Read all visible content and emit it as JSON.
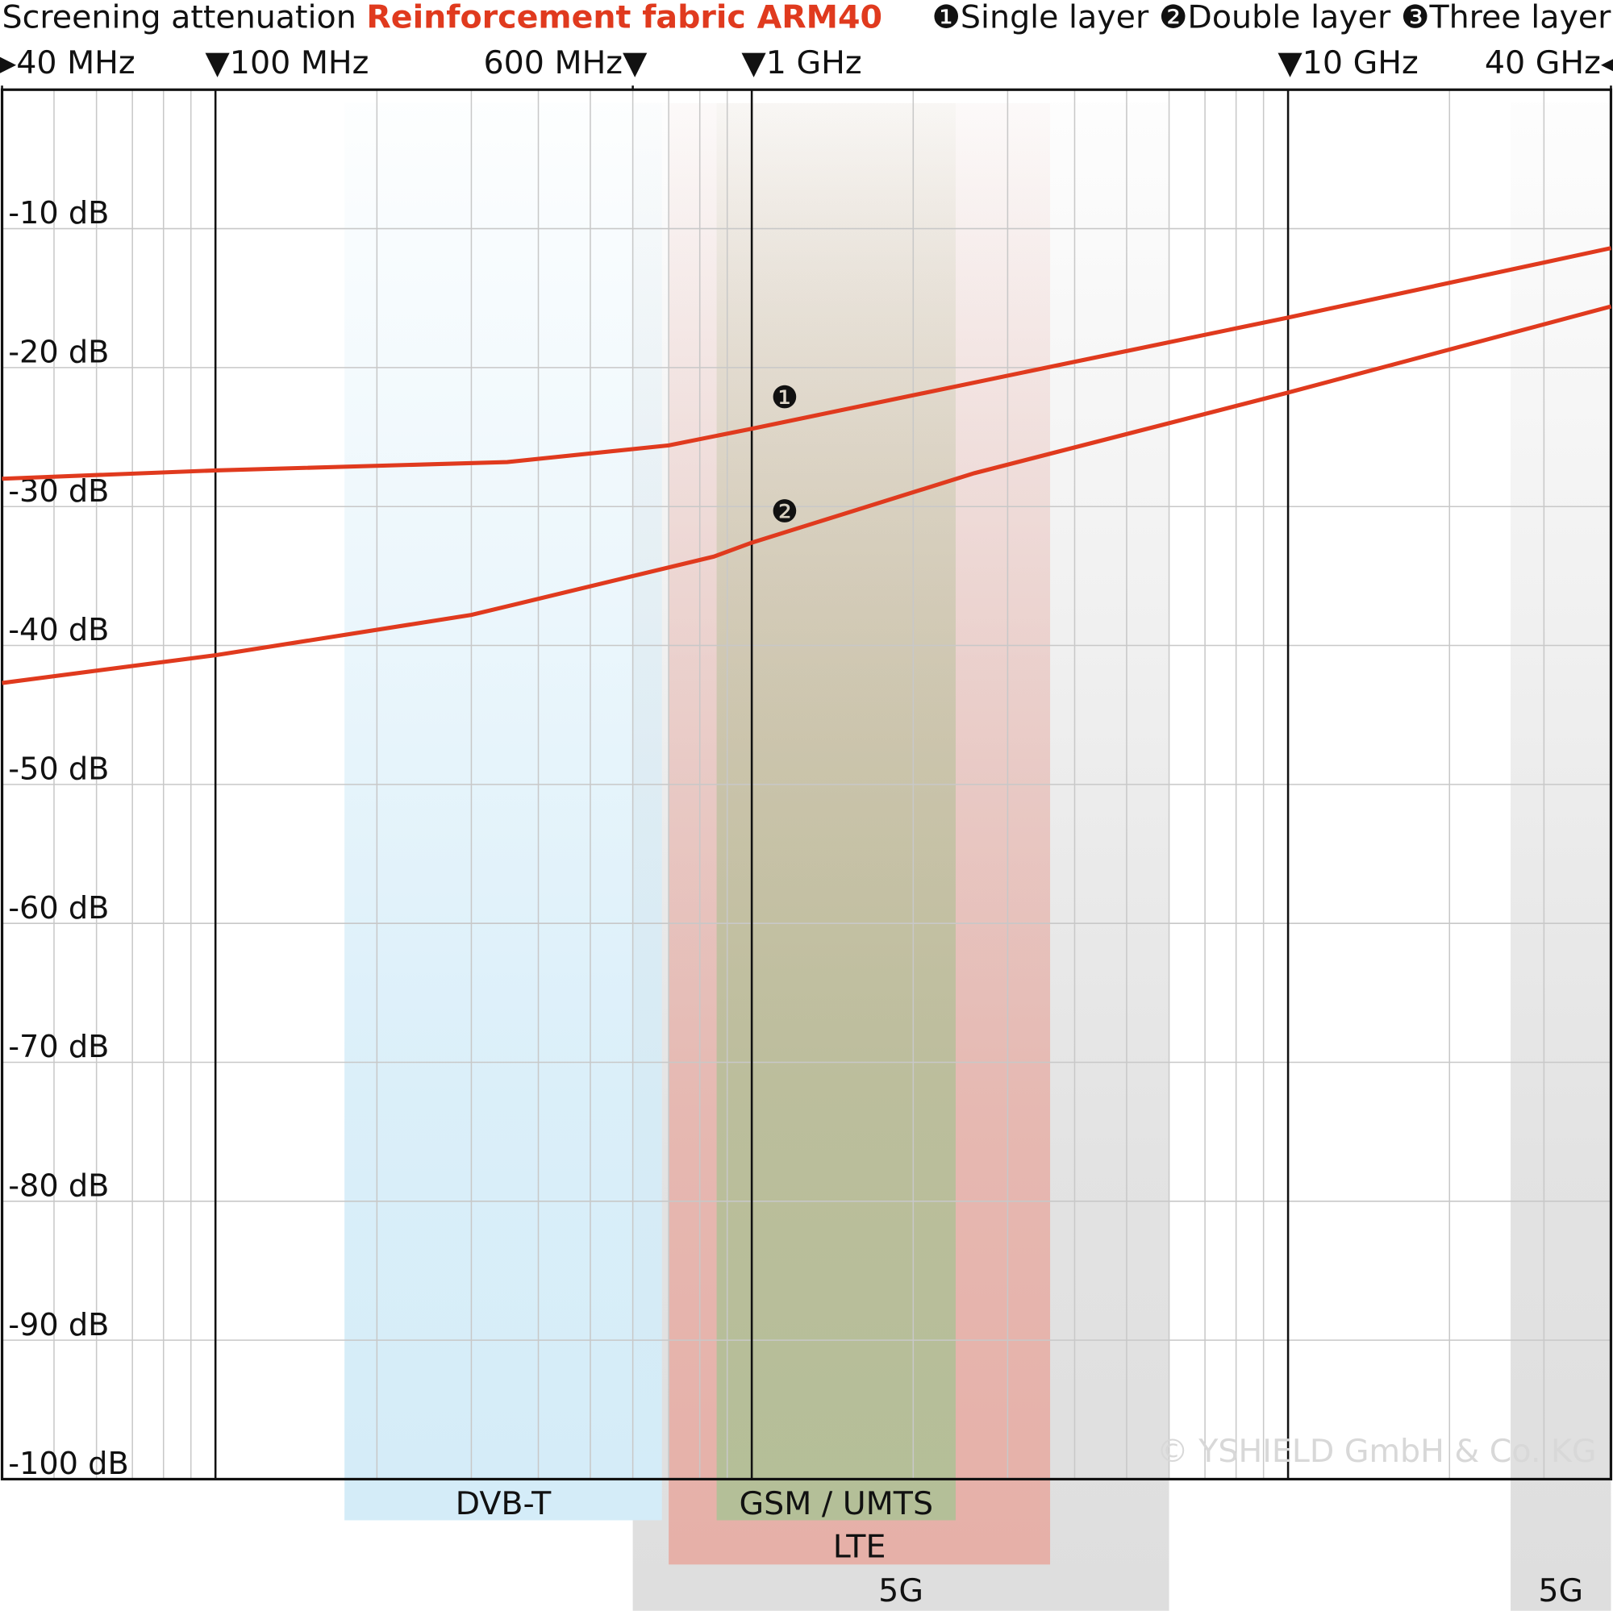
{
  "chart_data": {
    "type": "line",
    "title": "Screening attenuation",
    "subtitle": "Reinforcement fabric ARM40",
    "copyright": "© YSHIELD GmbH & Co. KG",
    "log_x": true,
    "grid": true,
    "line_color": "#e03a1e",
    "xlim": [
      40,
      40000
    ],
    "xticks": [
      {
        "value": 40,
        "label": "▶40 MHz"
      },
      {
        "value": 100,
        "label": "▼100 MHz"
      },
      {
        "value": 600,
        "label": "600 MHz▼"
      },
      {
        "value": 1000,
        "label": "▼1 GHz"
      },
      {
        "value": 10000,
        "label": "▼10 GHz"
      },
      {
        "value": 40000,
        "label": "40 GHz◀"
      }
    ],
    "ylim": [
      -100,
      0
    ],
    "yticks": [
      {
        "value": -10,
        "label": "-10 dB"
      },
      {
        "value": -20,
        "label": "-20 dB"
      },
      {
        "value": -30,
        "label": "-30 dB"
      },
      {
        "value": -40,
        "label": "-40 dB"
      },
      {
        "value": -50,
        "label": "-50 dB"
      },
      {
        "value": -60,
        "label": "-60 dB"
      },
      {
        "value": -70,
        "label": "-70 dB"
      },
      {
        "value": -80,
        "label": "-80 dB"
      },
      {
        "value": -90,
        "label": "-90 dB"
      },
      {
        "value": -100,
        "label": "-100 dB"
      }
    ],
    "bands": [
      {
        "label": "5G",
        "from": 600,
        "to": 6000,
        "color": "#dedede"
      },
      {
        "label": "5G",
        "from": 26000,
        "to": 40000,
        "color": "#dedede"
      },
      {
        "label": "LTE",
        "from": 700,
        "to": 3600,
        "color": "#e6b0a8"
      },
      {
        "label": "GSM / UMTS",
        "from": 860,
        "to": 2400,
        "color": "#b4bf98"
      },
      {
        "label": "DVB-T",
        "from": 174,
        "to": 680,
        "color": "#d4ecf8"
      }
    ],
    "series": [
      {
        "name": "Single layer",
        "marker": "❶",
        "x": [
          40,
          100,
          350,
          700,
          1000,
          10000,
          40000
        ],
        "values": [
          -28.0,
          -27.4,
          -26.8,
          -25.6,
          -24.4,
          -16.4,
          -11.4
        ]
      },
      {
        "name": "Double layer",
        "marker": "❷",
        "x": [
          40,
          100,
          300,
          850,
          1000,
          2600,
          10000,
          40000
        ],
        "values": [
          -42.7,
          -40.7,
          -37.8,
          -33.6,
          -32.6,
          -27.6,
          -21.8,
          -15.6
        ]
      },
      {
        "name": "Three layer",
        "marker": "❸",
        "x": [],
        "values": []
      }
    ]
  }
}
